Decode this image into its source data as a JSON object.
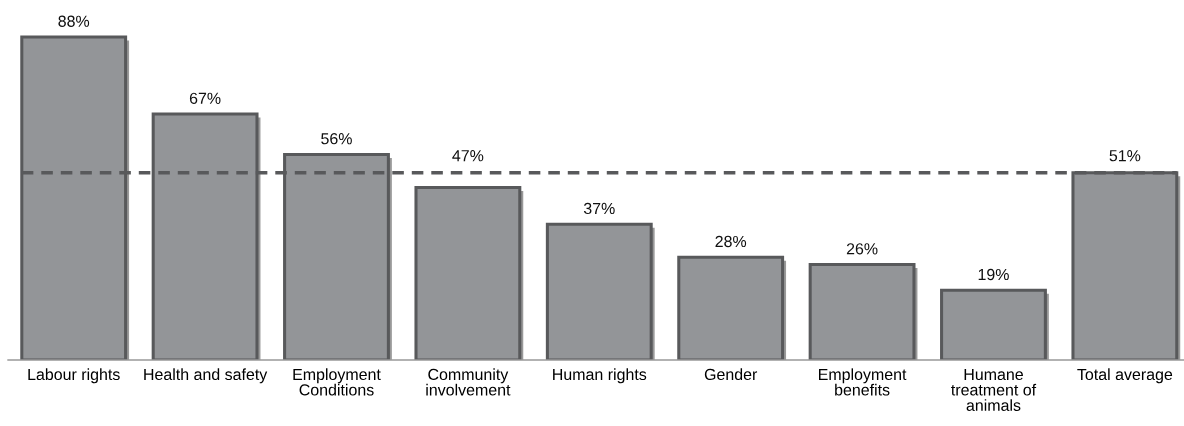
{
  "chart_data": {
    "type": "bar",
    "categories": [
      "Labour rights",
      "Health and safety",
      "Employment\nConditions",
      "Community\ninvolvement",
      "Human rights",
      "Gender",
      "Employment\nbenefits",
      "Humane\ntreatment of\nanimals",
      "Total average"
    ],
    "values": [
      88,
      67,
      56,
      47,
      37,
      28,
      26,
      19,
      51
    ],
    "value_labels": [
      "88%",
      "67%",
      "56%",
      "47%",
      "37%",
      "28%",
      "26%",
      "19%",
      "51%"
    ],
    "color": "#939598",
    "ref_lines": [
      {
        "axis": "y",
        "value": 51,
        "color": "#58595b",
        "line_style": "dashed"
      }
    ]
  }
}
